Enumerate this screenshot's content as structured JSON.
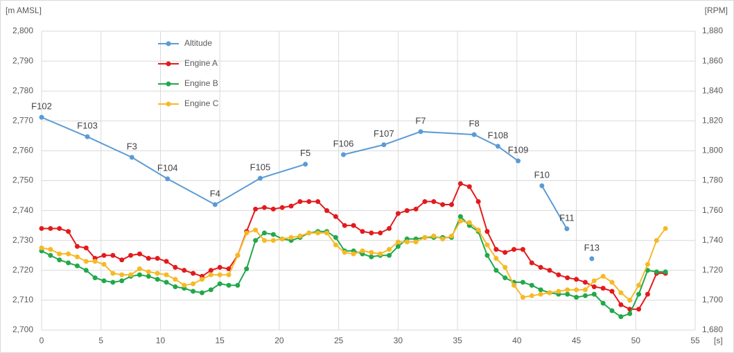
{
  "chart_data": {
    "type": "line",
    "y_label": "[m AMSL]",
    "y2_label": "[RPM]",
    "x_label": "[s]",
    "xlim": [
      0,
      55
    ],
    "xticks": [
      0,
      5,
      10,
      15,
      20,
      25,
      30,
      35,
      40,
      45,
      50,
      55
    ],
    "ylim": [
      2700,
      2800
    ],
    "yticks": [
      {
        "value": 2700,
        "label": "2,700"
      },
      {
        "value": 2710,
        "label": "2,710"
      },
      {
        "value": 2720,
        "label": "2,720"
      },
      {
        "value": 2730,
        "label": "2,730"
      },
      {
        "value": 2740,
        "label": "2,740"
      },
      {
        "value": 2750,
        "label": "2,750"
      },
      {
        "value": 2760,
        "label": "2,760"
      },
      {
        "value": 2770,
        "label": "2,770"
      },
      {
        "value": 2780,
        "label": "2,780"
      },
      {
        "value": 2790,
        "label": "2,790"
      },
      {
        "value": 2800,
        "label": "2,800"
      }
    ],
    "y2lim": [
      1680,
      1880
    ],
    "y2ticks": [
      {
        "value": 1680,
        "label": "1,680"
      },
      {
        "value": 1700,
        "label": "1,700"
      },
      {
        "value": 1720,
        "label": "1,720"
      },
      {
        "value": 1740,
        "label": "1,740"
      },
      {
        "value": 1760,
        "label": "1,760"
      },
      {
        "value": 1780,
        "label": "1,780"
      },
      {
        "value": 1800,
        "label": "1,800"
      },
      {
        "value": 1820,
        "label": "1,820"
      },
      {
        "value": 1840,
        "label": "1,840"
      },
      {
        "value": 1860,
        "label": "1,860"
      },
      {
        "value": 1880,
        "label": "1,880"
      }
    ],
    "grid": true,
    "legend": "upper-left",
    "series": [
      {
        "name": "Altitude",
        "color": "#5b9bd5",
        "x": [
          0,
          3.85,
          7.6,
          10.6,
          14.6,
          18.4,
          22.2,
          null,
          25.4,
          28.8,
          31.9,
          36.4,
          38.4,
          40.1,
          null,
          42.1,
          44.2,
          null,
          46.3
        ],
        "values": [
          2771.2,
          2764.7,
          2757.8,
          2750.6,
          2742.0,
          2750.8,
          2755.5,
          null,
          2758.7,
          2762.0,
          2766.4,
          2765.4,
          2761.5,
          2756.6,
          null,
          2748.3,
          2733.9,
          null,
          2723.9
        ],
        "point_labels": [
          "F102",
          "F103",
          "F3",
          "F104",
          "F4",
          "F105",
          "F5",
          null,
          "F106",
          "F107",
          "F7",
          "F8",
          "F108",
          "F109",
          null,
          "F10",
          "F11",
          null,
          "F13"
        ]
      },
      {
        "name": "Engine A",
        "color": "#e31a1c",
        "axis": "y2",
        "x": [
          0,
          0.75,
          1.5,
          2.25,
          3,
          3.75,
          4.5,
          5.25,
          6,
          6.75,
          7.5,
          8.25,
          9,
          9.75,
          10.5,
          11.25,
          12,
          12.75,
          13.5,
          14.25,
          15,
          15.75,
          16.5,
          17.25,
          18,
          18.75,
          19.5,
          20.25,
          21,
          21.75,
          22.5,
          23.25,
          24,
          24.75,
          25.5,
          26.25,
          27,
          27.75,
          28.5,
          29.25,
          30,
          30.75,
          31.5,
          32.25,
          33,
          33.75,
          34.5,
          35.25,
          36,
          36.75,
          37.5,
          38.25,
          39,
          39.75,
          40.5,
          41.25,
          42,
          42.75,
          43.5,
          44.25,
          45,
          45.75,
          46.5,
          47.25,
          48,
          48.75,
          49.5,
          50.25,
          51,
          51.75,
          52.5
        ],
        "values": [
          1748,
          1748,
          1748,
          1746,
          1736,
          1735,
          1728,
          1730,
          1730,
          1727,
          1730,
          1731,
          1728,
          1728,
          1726,
          1722,
          1720,
          1718,
          1716,
          1720,
          1722,
          1721,
          1730,
          1746,
          1761,
          1762,
          1761,
          1762,
          1763,
          1766,
          1766,
          1766,
          1760,
          1756,
          1750,
          1750,
          1746,
          1745,
          1745,
          1748,
          1758,
          1760,
          1761,
          1766,
          1766,
          1764,
          1764,
          1778,
          1776,
          1766,
          1746,
          1734,
          1732,
          1734,
          1734,
          1725,
          1722,
          1720,
          1717,
          1715,
          1714,
          1712,
          1709,
          1708,
          1706,
          1697,
          1694,
          1694,
          1704,
          1718,
          1718
        ]
      },
      {
        "name": "Engine B",
        "color": "#21a84a",
        "axis": "y2",
        "x": [
          0,
          0.75,
          1.5,
          2.25,
          3,
          3.75,
          4.5,
          5.25,
          6,
          6.75,
          7.5,
          8.25,
          9,
          9.75,
          10.5,
          11.25,
          12,
          12.75,
          13.5,
          14.25,
          15,
          15.75,
          16.5,
          17.25,
          18,
          18.75,
          19.5,
          20.25,
          21,
          21.75,
          22.5,
          23.25,
          24,
          24.75,
          25.5,
          26.25,
          27,
          27.75,
          28.5,
          29.25,
          30,
          30.75,
          31.5,
          32.25,
          33,
          33.75,
          34.5,
          35.25,
          36,
          36.75,
          37.5,
          38.25,
          39,
          39.75,
          40.5,
          41.25,
          42,
          42.75,
          43.5,
          44.25,
          45,
          45.75,
          46.5,
          47.25,
          48,
          48.75,
          49.5,
          50.25,
          51,
          51.75,
          52.5
        ],
        "values": [
          1733,
          1730,
          1727,
          1725,
          1723,
          1720,
          1715,
          1713,
          1712,
          1713,
          1716,
          1717,
          1716,
          1714,
          1712,
          1709,
          1708,
          1706,
          1705,
          1707,
          1711,
          1710,
          1710,
          1721,
          1740,
          1745,
          1744,
          1741,
          1740,
          1742,
          1745,
          1746,
          1746,
          1742,
          1733,
          1733,
          1731,
          1729,
          1730,
          1730,
          1736,
          1741,
          1741,
          1742,
          1742,
          1742,
          1742,
          1756,
          1750,
          1746,
          1730,
          1720,
          1715,
          1712,
          1712,
          1710,
          1707,
          1705,
          1704,
          1704,
          1702,
          1703,
          1704,
          1698,
          1693,
          1689,
          1691,
          1704,
          1720,
          1719,
          1719
        ]
      },
      {
        "name": "Engine C",
        "color": "#f6b926",
        "axis": "y2",
        "x": [
          0,
          0.75,
          1.5,
          2.25,
          3,
          3.75,
          4.5,
          5.25,
          6,
          6.75,
          7.5,
          8.25,
          9,
          9.75,
          10.5,
          11.25,
          12,
          12.75,
          13.5,
          14.25,
          15,
          15.75,
          16.5,
          17.25,
          18,
          18.75,
          19.5,
          20.25,
          21,
          21.75,
          22.5,
          23.25,
          24,
          24.75,
          25.5,
          26.25,
          27,
          27.75,
          28.5,
          29.25,
          30,
          30.75,
          31.5,
          32.25,
          33,
          33.75,
          34.5,
          35.25,
          36,
          36.75,
          37.5,
          38.25,
          39,
          39.75,
          40.5,
          41.25,
          42,
          42.75,
          43.5,
          44.25,
          45,
          45.75,
          46.5,
          47.25,
          48,
          48.75,
          49.5,
          50.25,
          51,
          51.75,
          52.5
        ],
        "values": [
          1735,
          1734,
          1731,
          1731,
          1729,
          1726,
          1726,
          1724,
          1718,
          1717,
          1717,
          1721,
          1719,
          1718,
          1717,
          1714,
          1710,
          1711,
          1714,
          1717,
          1717,
          1717,
          1730,
          1745,
          1747,
          1740,
          1740,
          1741,
          1742,
          1743,
          1745,
          1745,
          1745,
          1737,
          1732,
          1731,
          1733,
          1732,
          1731,
          1734,
          1739,
          1739,
          1739,
          1742,
          1743,
          1741,
          1743,
          1753,
          1752,
          1747,
          1737,
          1728,
          1722,
          1710,
          1702,
          1703,
          1704,
          1705,
          1706,
          1707,
          1707,
          1707,
          1713,
          1716,
          1712,
          1705,
          1700,
          1710,
          1724,
          1740,
          1748
        ]
      }
    ]
  }
}
